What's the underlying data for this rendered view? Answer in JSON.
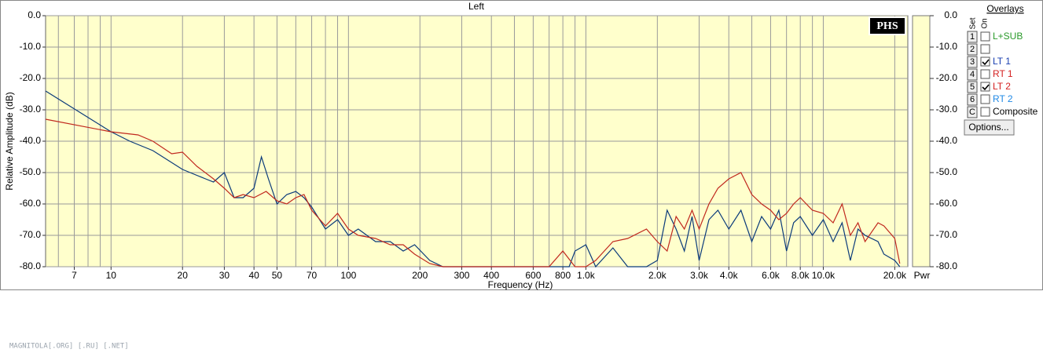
{
  "chart_data": {
    "type": "line",
    "title": "Left",
    "xlabel": "Frequency (Hz)",
    "ylabel": "Relative Amplitude (dB)",
    "power_label": "Pwr",
    "badge": "PHS",
    "xscale": "log",
    "xlim": [
      5.3,
      22700
    ],
    "ylim": [
      -80,
      0
    ],
    "y2lim": [
      -80,
      0
    ],
    "grid": true,
    "background": "#ffffcc",
    "xticks": [
      7,
      10,
      20,
      30,
      40,
      50,
      70,
      100,
      200,
      300,
      400,
      600,
      800,
      {
        "value": 1000,
        "label": "1.0k"
      },
      {
        "value": 2000,
        "label": "2.0k"
      },
      {
        "value": 3000,
        "label": "3.0k"
      },
      {
        "value": 4000,
        "label": "4.0k"
      },
      {
        "value": 6000,
        "label": "6.0k"
      },
      {
        "value": 8000,
        "label": "8.0k"
      },
      {
        "value": 10000,
        "label": "10.0k"
      },
      {
        "value": 20000,
        "label": "20.0k"
      }
    ],
    "xgrid": [
      6,
      7,
      8,
      9,
      10,
      20,
      30,
      40,
      50,
      60,
      70,
      80,
      90,
      100,
      200,
      300,
      400,
      500,
      600,
      700,
      800,
      900,
      1000,
      2000,
      3000,
      4000,
      5000,
      6000,
      7000,
      8000,
      9000,
      10000,
      20000
    ],
    "yticks": [
      {
        "value": 0,
        "label": "0.0"
      },
      {
        "value": -10,
        "label": "-10.0"
      },
      {
        "value": -20,
        "label": "-20.0"
      },
      {
        "value": -30,
        "label": "-30.0"
      },
      {
        "value": -40,
        "label": "-40.0"
      },
      {
        "value": -50,
        "label": "-50.0"
      },
      {
        "value": -60,
        "label": "-60.0"
      },
      {
        "value": -70,
        "label": "-70.0"
      },
      {
        "value": -80,
        "label": "-80.0"
      }
    ],
    "y2ticks": [
      {
        "value": 0,
        "label": "0.0"
      },
      {
        "value": -10,
        "label": "-10.0"
      },
      {
        "value": -20,
        "label": "-20.0"
      },
      {
        "value": -30,
        "label": "-30.0"
      },
      {
        "value": -40,
        "label": "-40.0"
      },
      {
        "value": -50,
        "label": "-50.0"
      },
      {
        "value": -60,
        "label": "-60.0"
      },
      {
        "value": -70,
        "label": "-70.0"
      },
      {
        "value": -80,
        "label": "-80.0"
      }
    ],
    "series": [
      {
        "name": "LT 1",
        "color": "#0a3a7a",
        "x": [
          5.3,
          10,
          12,
          15,
          20,
          25,
          27,
          30,
          33,
          36,
          40,
          43,
          46,
          50,
          55,
          60,
          65,
          70,
          80,
          90,
          100,
          110,
          130,
          150,
          170,
          190,
          220,
          250,
          850,
          900,
          1000,
          1100,
          1300,
          1500,
          1800,
          2000,
          2200,
          2400,
          2600,
          2800,
          3000,
          3300,
          3600,
          4000,
          4500,
          5000,
          5500,
          6000,
          6500,
          7000,
          7500,
          8000,
          9000,
          10000,
          11000,
          12000,
          13000,
          14000,
          15000,
          17000,
          18000,
          20000,
          21000
        ],
        "values": [
          -24,
          -37,
          -40,
          -43,
          -49,
          -52,
          -53,
          -50,
          -58,
          -58,
          -55,
          -45,
          -52,
          -60,
          -57,
          -56,
          -58,
          -61,
          -68,
          -65,
          -70,
          -68,
          -72,
          -72,
          -75,
          -73,
          -78,
          -80,
          -80,
          -75,
          -73,
          -80,
          -74,
          -80,
          -80,
          -78,
          -62,
          -68,
          -75,
          -64,
          -78,
          -65,
          -62,
          -68,
          -62,
          -72,
          -64,
          -68,
          -62,
          -75,
          -66,
          -64,
          -70,
          -65,
          -72,
          -66,
          -78,
          -68,
          -70,
          -72,
          -76,
          -78,
          -80
        ]
      },
      {
        "name": "LT 2",
        "color": "#c0281e",
        "x": [
          5.3,
          10,
          13,
          15,
          18,
          20,
          23,
          27,
          30,
          33,
          36,
          40,
          45,
          50,
          55,
          60,
          65,
          70,
          80,
          90,
          100,
          110,
          130,
          150,
          170,
          190,
          220,
          250,
          700,
          800,
          900,
          1000,
          1100,
          1300,
          1500,
          1800,
          2000,
          2200,
          2400,
          2600,
          2800,
          3000,
          3300,
          3600,
          4000,
          4500,
          5000,
          5500,
          6000,
          6500,
          7000,
          7500,
          8000,
          9000,
          10000,
          11000,
          12000,
          13000,
          14000,
          15000,
          17000,
          18000,
          20000,
          21000
        ],
        "values": [
          -33,
          -37,
          -38,
          -40,
          -44,
          -43.5,
          -48,
          -52,
          -55,
          -58,
          -57,
          -58,
          -56,
          -59,
          -60,
          -58,
          -57,
          -62,
          -67,
          -63,
          -68,
          -70,
          -71,
          -73,
          -73,
          -76,
          -79,
          -80,
          -80,
          -75,
          -80,
          -80,
          -78,
          -72,
          -71,
          -68,
          -72,
          -75,
          -64,
          -68,
          -62,
          -68,
          -60,
          -55,
          -52,
          -50,
          -57,
          -60,
          -62,
          -65,
          -63,
          -60,
          -58,
          -62,
          -63,
          -66,
          -60,
          -70,
          -66,
          -72,
          -66,
          -67,
          -71,
          -79
        ]
      }
    ]
  },
  "overlays": {
    "title": "Overlays",
    "set_header": "Set",
    "on_header": "On",
    "button": "Options...",
    "rows": [
      {
        "set": "1",
        "label": "L+SUB",
        "checked": false,
        "color": "#2a9a2a"
      },
      {
        "set": "2",
        "checked": false,
        "color": "#000000"
      },
      {
        "set": "3",
        "label": "LT 1",
        "checked": true,
        "color": "#1a3fb0"
      },
      {
        "set": "4",
        "label": "RT 1",
        "checked": false,
        "color": "#d42020"
      },
      {
        "set": "5",
        "label": "LT 2",
        "checked": true,
        "color": "#d42020"
      },
      {
        "set": "6",
        "label": "RT 2",
        "checked": false,
        "color": "#1e88e5"
      },
      {
        "set": "C",
        "label": "Composite",
        "checked": false,
        "color": "#000000"
      }
    ]
  },
  "watermark": "MAGNITOLA[.ORG] [.RU] [.NET]"
}
